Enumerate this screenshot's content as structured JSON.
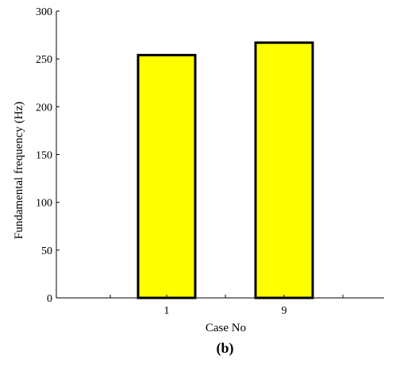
{
  "chart_data": {
    "type": "bar",
    "categories": [
      "1",
      "9"
    ],
    "values": [
      254,
      267
    ],
    "xlabel": "Case No",
    "ylabel": "Fundamental frequency (Hz)",
    "ylim": [
      0,
      300
    ],
    "yticks": [
      0,
      50,
      100,
      150,
      200,
      250,
      300
    ],
    "panel_label": "(b)",
    "grid": false,
    "bar_color": "#ffff00",
    "bar_edge_color": "#000000"
  }
}
